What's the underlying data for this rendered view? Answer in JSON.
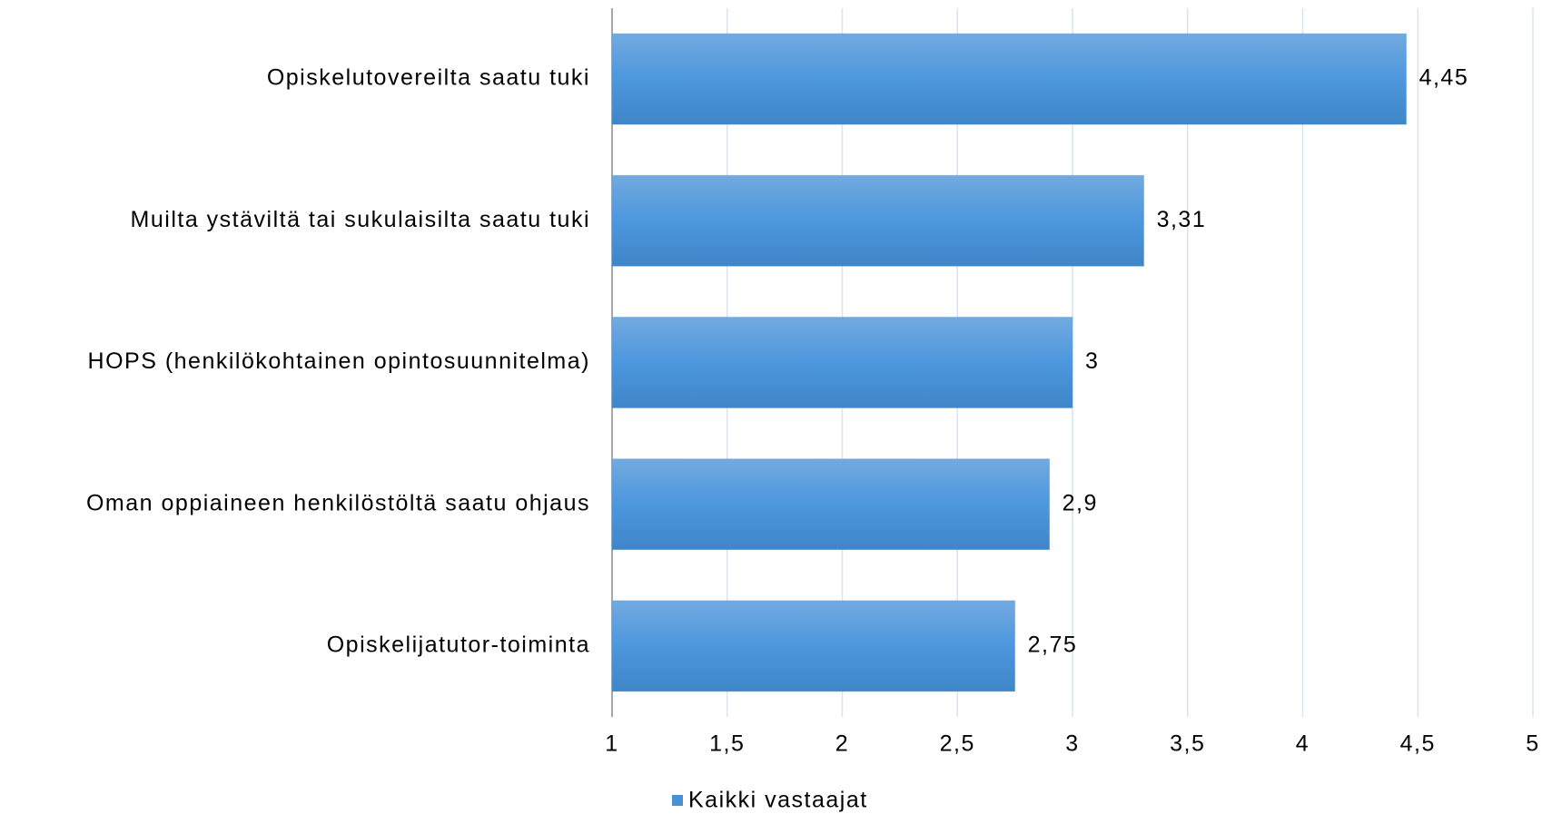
{
  "chart_data": {
    "type": "barh",
    "categories": [
      "Opiskelutovereilta saatu tuki",
      "Muilta ystäviltä tai sukulaisilta saatu tuki",
      "HOPS (henkilökohtainen opintosuunnitelma)",
      "Oman oppiaineen henkilöstöltä saatu ohjaus",
      "Opiskelijatutor-toiminta"
    ],
    "series": [
      {
        "name": "Kaikki vastaajat",
        "color": "#4a90d4",
        "values": [
          4.45,
          3.31,
          3,
          2.9,
          2.75
        ],
        "value_labels": [
          "4,45",
          "3,31",
          "3",
          "2,9",
          "2,75"
        ]
      }
    ],
    "xlim": [
      1,
      5
    ],
    "xticks": [
      1,
      {
        "value": 1.5,
        "label": "1,5"
      },
      2,
      {
        "value": 2.5,
        "label": "2,5"
      },
      3,
      {
        "value": 3.5,
        "label": "3,5"
      },
      4,
      {
        "value": 4.5,
        "label": "4,5"
      },
      5
    ],
    "grid": true,
    "legend": "bottom"
  }
}
